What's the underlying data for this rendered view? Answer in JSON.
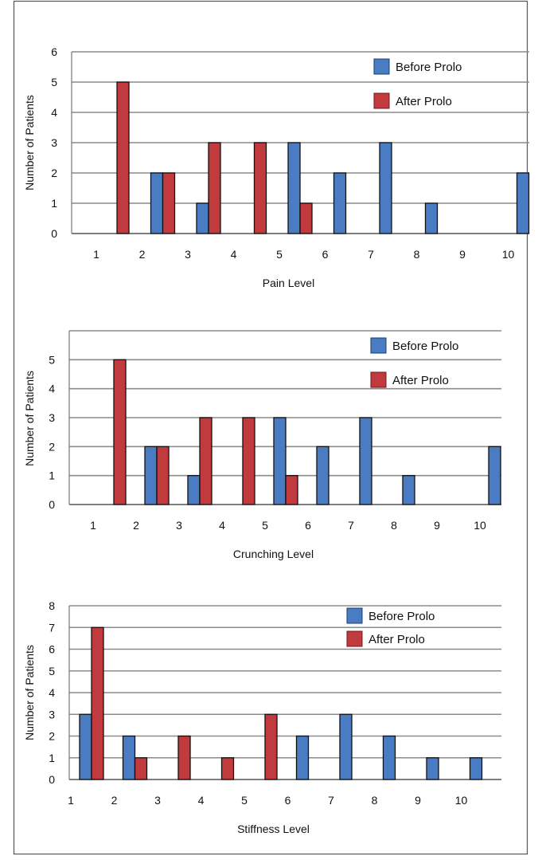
{
  "chart_data": [
    {
      "type": "bar",
      "categories": [
        "1",
        "2",
        "3",
        "4",
        "5",
        "6",
        "7",
        "8",
        "9",
        "10"
      ],
      "series": [
        {
          "name": "Before Prolo",
          "values": [
            0,
            2,
            1,
            0,
            3,
            2,
            3,
            1,
            0,
            2
          ]
        },
        {
          "name": "After Prolo",
          "values": [
            5,
            2,
            3,
            3,
            1,
            0,
            0,
            0,
            0,
            0
          ]
        }
      ],
      "xlabel": "Pain Level",
      "ylabel": "Number of Patients",
      "ylim": [
        0,
        6
      ],
      "yticks": [
        "0",
        "1",
        "2",
        "3",
        "4",
        "5",
        "6"
      ],
      "grid": true,
      "legend": "top-right"
    },
    {
      "type": "bar",
      "categories": [
        "1",
        "2",
        "3",
        "4",
        "5",
        "6",
        "7",
        "8",
        "9",
        "10"
      ],
      "series": [
        {
          "name": "Before Prolo",
          "values": [
            0,
            2,
            1,
            0,
            3,
            2,
            3,
            1,
            0,
            2
          ]
        },
        {
          "name": "After Prolo",
          "values": [
            5,
            2,
            3,
            3,
            1,
            0,
            0,
            0,
            0,
            0
          ]
        }
      ],
      "xlabel": "Crunching Level",
      "ylabel": "Number of Patients",
      "ylim": [
        0,
        6
      ],
      "yticks": [
        "0",
        "1",
        "2",
        "3",
        "4",
        "5"
      ],
      "grid": true,
      "legend": "top-right"
    },
    {
      "type": "bar",
      "categories": [
        "1",
        "2",
        "3",
        "4",
        "5",
        "6",
        "7",
        "8",
        "9",
        "10"
      ],
      "series": [
        {
          "name": "Before Prolo",
          "values": [
            3,
            2,
            0,
            0,
            0,
            2,
            3,
            2,
            1,
            1
          ]
        },
        {
          "name": "After Prolo",
          "values": [
            7,
            1,
            2,
            1,
            3,
            0,
            0,
            0,
            0,
            0
          ]
        }
      ],
      "xlabel": "Stiffness Level",
      "ylabel": "Number of Patients",
      "ylim": [
        0,
        8
      ],
      "yticks": [
        "0",
        "1",
        "2",
        "3",
        "4",
        "5",
        "6",
        "7",
        "8"
      ],
      "grid": true,
      "legend": "top-right"
    }
  ],
  "colors": {
    "before": "#4a7cc4",
    "after": "#c03a3e",
    "grid": "#8c8c8c",
    "border": "#555555"
  }
}
